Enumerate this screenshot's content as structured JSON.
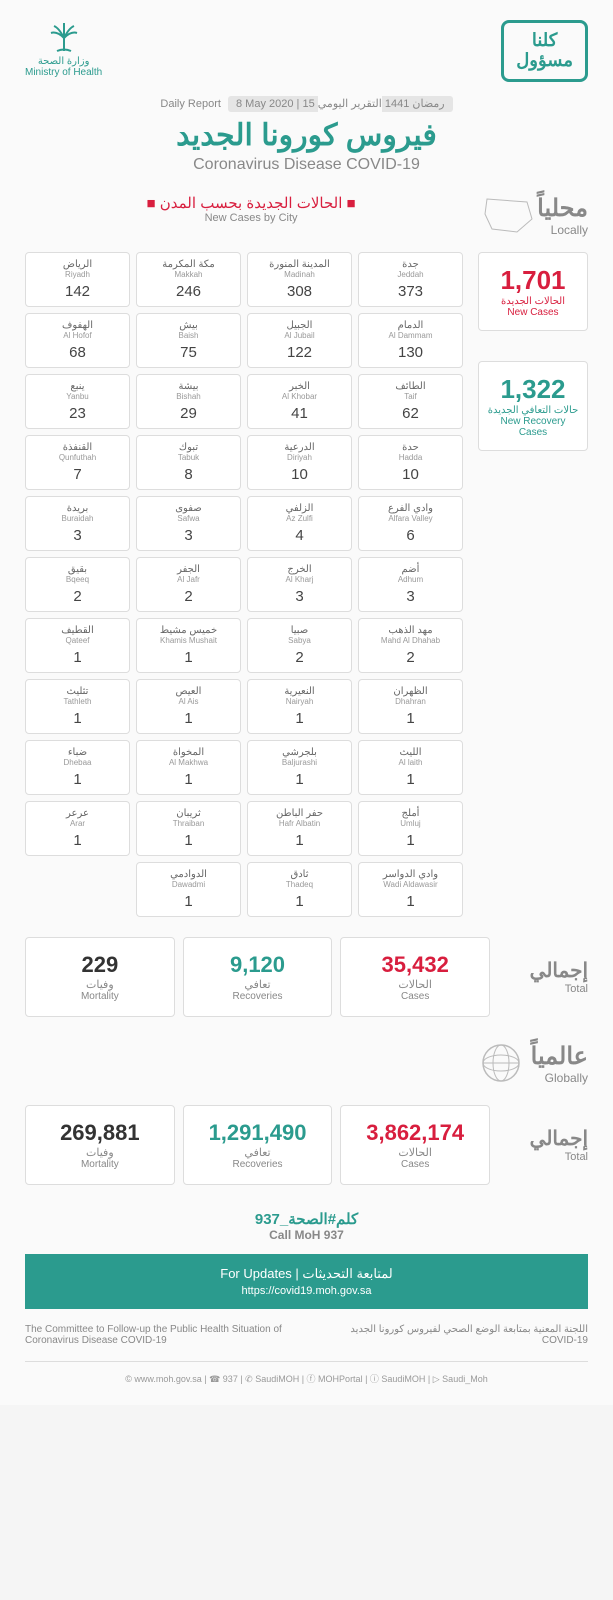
{
  "header": {
    "moh_ar": "وزارة الصحة",
    "moh_en": "Ministry of Health",
    "badge_line1": "كلنا",
    "badge_line2": "مسؤول"
  },
  "report": {
    "daily_en": "Daily Report",
    "date_ar": "15 رمضان 1441",
    "date_en": "8 May 2020",
    "daily_ar": "التقرير اليومي"
  },
  "title": {
    "ar": "فيروس كورونا الجديد",
    "en": "Coronavirus Disease COVID-19"
  },
  "locally": {
    "cases_by_city_ar": "الحالات الجديدة بحسب المدن",
    "cases_by_city_en": "New Cases by City",
    "label_ar": "محلياً",
    "label_en": "Locally"
  },
  "cities": [
    [
      {
        "ar": "الرياض",
        "en": "Riyadh",
        "val": "142"
      },
      {
        "ar": "مكة المكرمة",
        "en": "Makkah",
        "val": "246"
      },
      {
        "ar": "المدينة المنورة",
        "en": "Madinah",
        "val": "308"
      },
      {
        "ar": "جدة",
        "en": "Jeddah",
        "val": "373"
      }
    ],
    [
      {
        "ar": "الهفوف",
        "en": "Al Hofof",
        "val": "68"
      },
      {
        "ar": "بيش",
        "en": "Baish",
        "val": "75"
      },
      {
        "ar": "الجبيل",
        "en": "Al Jubail",
        "val": "122"
      },
      {
        "ar": "الدمام",
        "en": "Al Dammam",
        "val": "130"
      }
    ],
    [
      {
        "ar": "ينبع",
        "en": "Yanbu",
        "val": "23"
      },
      {
        "ar": "بيشة",
        "en": "Bishah",
        "val": "29"
      },
      {
        "ar": "الخبر",
        "en": "Al Khobar",
        "val": "41"
      },
      {
        "ar": "الطائف",
        "en": "Taif",
        "val": "62"
      }
    ],
    [
      {
        "ar": "القنفذة",
        "en": "Qunfuthah",
        "val": "7"
      },
      {
        "ar": "تبوك",
        "en": "Tabuk",
        "val": "8"
      },
      {
        "ar": "الدرعية",
        "en": "Diriyah",
        "val": "10"
      },
      {
        "ar": "حدة",
        "en": "Hadda",
        "val": "10"
      }
    ],
    [
      {
        "ar": "بريدة",
        "en": "Buraidah",
        "val": "3"
      },
      {
        "ar": "صفوى",
        "en": "Safwa",
        "val": "3"
      },
      {
        "ar": "الزلفي",
        "en": "Az Zulfi",
        "val": "4"
      },
      {
        "ar": "وادي الفرع",
        "en": "Alfara Valley",
        "val": "6"
      }
    ],
    [
      {
        "ar": "بقيق",
        "en": "Bqeeq",
        "val": "2"
      },
      {
        "ar": "الجفر",
        "en": "Al Jafr",
        "val": "2"
      },
      {
        "ar": "الخرج",
        "en": "Al Kharj",
        "val": "3"
      },
      {
        "ar": "أضم",
        "en": "Adhum",
        "val": "3"
      }
    ],
    [
      {
        "ar": "القطيف",
        "en": "Qateef",
        "val": "1"
      },
      {
        "ar": "خميس مشيط",
        "en": "Khamis Mushait",
        "val": "1"
      },
      {
        "ar": "صبيا",
        "en": "Sabya",
        "val": "2"
      },
      {
        "ar": "مهد الذهب",
        "en": "Mahd Al Dhahab",
        "val": "2"
      }
    ],
    [
      {
        "ar": "تثليث",
        "en": "Tathleth",
        "val": "1"
      },
      {
        "ar": "العيص",
        "en": "Al Ais",
        "val": "1"
      },
      {
        "ar": "النعيرية",
        "en": "Nairyah",
        "val": "1"
      },
      {
        "ar": "الظهران",
        "en": "Dhahran",
        "val": "1"
      }
    ],
    [
      {
        "ar": "ضباء",
        "en": "Dhebaa",
        "val": "1"
      },
      {
        "ar": "المخواة",
        "en": "Al Makhwa",
        "val": "1"
      },
      {
        "ar": "بلجرشي",
        "en": "Baljurashi",
        "val": "1"
      },
      {
        "ar": "الليث",
        "en": "Al laith",
        "val": "1"
      }
    ],
    [
      {
        "ar": "عرعر",
        "en": "Arar",
        "val": "1"
      },
      {
        "ar": "ثريبان",
        "en": "Thraiban",
        "val": "1"
      },
      {
        "ar": "حفر الباطن",
        "en": "Hafr Albatin",
        "val": "1"
      },
      {
        "ar": "أملج",
        "en": "Umluj",
        "val": "1"
      }
    ],
    [
      {
        "blank": true
      },
      {
        "ar": "الدوادمي",
        "en": "Dawadmi",
        "val": "1"
      },
      {
        "ar": "ثادق",
        "en": "Thadeq",
        "val": "1"
      },
      {
        "ar": "وادي الدواسر",
        "en": "Wadi Aldawasir",
        "val": "1"
      }
    ]
  ],
  "side": {
    "new_cases": {
      "num": "1,701",
      "ar": "الحالات الجديدة",
      "en": "New Cases"
    },
    "recoveries": {
      "num": "1,322",
      "ar": "حالات التعافي الجديدة",
      "en": "New Recovery Cases"
    }
  },
  "local_totals": {
    "mortality": {
      "num": "229",
      "ar": "وفيات",
      "en": "Mortality"
    },
    "recoveries": {
      "num": "9,120",
      "ar": "تعافي",
      "en": "Recoveries"
    },
    "cases": {
      "num": "35,432",
      "ar": "الحالات",
      "en": "Cases"
    },
    "label_ar": "إجمالي",
    "label_en": "Total"
  },
  "globally": {
    "label_ar": "عالمياً",
    "label_en": "Globally"
  },
  "global_totals": {
    "mortality": {
      "num": "269,881",
      "ar": "وفيات",
      "en": "Mortality"
    },
    "recoveries": {
      "num": "1,291,490",
      "ar": "تعافي",
      "en": "Recoveries"
    },
    "cases": {
      "num": "3,862,174",
      "ar": "الحالات",
      "en": "Cases"
    },
    "label_ar": "إجمالي",
    "label_en": "Total"
  },
  "call": {
    "ar": "كلم#الصحة_937",
    "en": "Call MoH 937"
  },
  "updates": {
    "label_ar": "لمتابعة التحديثات",
    "label_en": "For Updates",
    "url": "https://covid19.moh.gov.sa"
  },
  "committee": {
    "en": "The Committee to Follow-up the Public Health Situation of Coronavirus Disease COVID-19",
    "ar": "اللجنة المعنية بمتابعة الوضع الصحي لفيروس كورونا الجديد COVID-19"
  },
  "footer": "© www.moh.gov.sa | ☎ 937 | ✆ SaudiMOH | ⓕ MOHPortal | ⓘ SaudiMOH | ▷ Saudi_Moh",
  "colors": {
    "teal": "#2b9b8e",
    "red": "#d81e3e",
    "gray": "#888888",
    "border": "#dddddd",
    "bg": "#fafafa"
  }
}
